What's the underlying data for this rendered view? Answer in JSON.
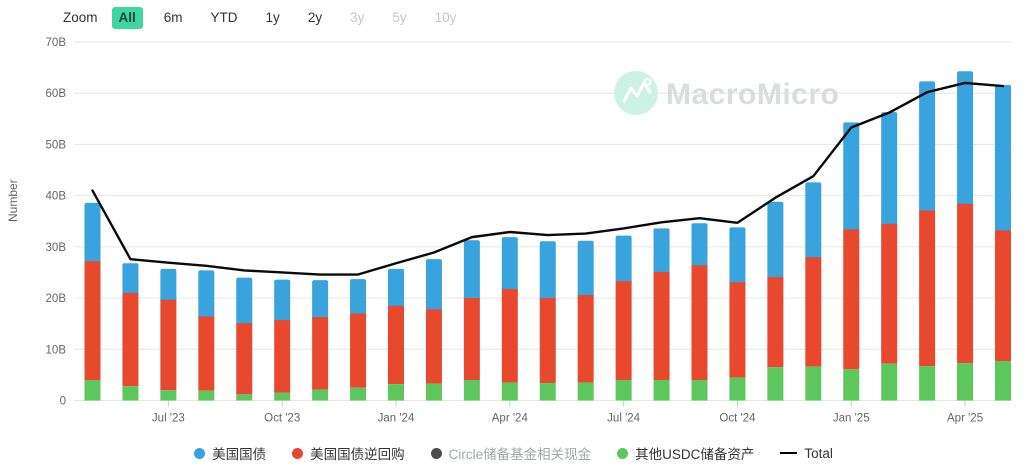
{
  "toolbar": {
    "zoom_label": "Zoom",
    "buttons": [
      {
        "label": "All",
        "state": "selected"
      },
      {
        "label": "6m",
        "state": "normal"
      },
      {
        "label": "YTD",
        "state": "normal"
      },
      {
        "label": "1y",
        "state": "normal"
      },
      {
        "label": "2y",
        "state": "normal"
      },
      {
        "label": "3y",
        "state": "disabled"
      },
      {
        "label": "5y",
        "state": "disabled"
      },
      {
        "label": "10y",
        "state": "disabled"
      }
    ]
  },
  "watermark": {
    "text": "MacroMicro",
    "icon": "macromicro-logo",
    "circle_color": "#cdf1e5",
    "text_color": "#dadde0"
  },
  "colors": {
    "treasury_blue": "#38a3dc",
    "repo_red": "#e8492e",
    "circle_cash_gray": "#4d4d4d",
    "other_green": "#5cc75c",
    "total_line": "#0a0a0a",
    "grid": "#e6e6e6",
    "axis_text": "#666666",
    "selected_range_bg": "#40d6a2"
  },
  "chart_data": {
    "type": "bar",
    "stacked": true,
    "title": "",
    "xlabel": "",
    "ylabel": "Number",
    "ylim": [
      0,
      70
    ],
    "grid": true,
    "legend_position": "bottom",
    "ytick_labels": [
      "0",
      "10B",
      "20B",
      "30B",
      "40B",
      "50B",
      "60B",
      "70B"
    ],
    "categories": [
      "May '23",
      "Jun '23",
      "Jul '23",
      "Aug '23",
      "Sep '23",
      "Oct '23",
      "Nov '23",
      "Dec '23",
      "Jan '24",
      "Feb '24",
      "Mar '24",
      "Apr '24",
      "May '24",
      "Jun '24",
      "Jul '24",
      "Aug '24",
      "Sep '24",
      "Oct '24",
      "Nov '24",
      "Dec '24",
      "Jan '25",
      "Feb '25",
      "Mar '25",
      "Apr '25",
      "May '25"
    ],
    "xtick_indices": [
      2,
      5,
      8,
      11,
      14,
      17,
      20,
      23
    ],
    "xtick_labels": [
      "Jul '23",
      "Oct '23",
      "Jan '24",
      "Apr '24",
      "Jul '24",
      "Oct '24",
      "Jan '25",
      "Apr '25"
    ],
    "series": [
      {
        "name": "其他USDC储备资产",
        "type": "bar",
        "color": "#5cc75c",
        "stack_order": 0,
        "values": [
          4.0,
          2.8,
          2.0,
          1.9,
          1.2,
          1.5,
          2.1,
          2.5,
          3.2,
          3.3,
          4.0,
          3.5,
          3.4,
          3.5,
          4.0,
          4.0,
          4.0,
          4.5,
          6.5,
          6.6,
          6.1,
          7.2,
          6.7,
          7.3,
          7.7
        ]
      },
      {
        "name": "美国国债逆回购",
        "type": "bar",
        "color": "#e8492e",
        "stack_order": 1,
        "values": [
          23.2,
          18.2,
          17.7,
          14.5,
          13.9,
          14.2,
          14.2,
          14.5,
          15.3,
          14.5,
          16.0,
          18.3,
          16.6,
          17.1,
          19.3,
          21.1,
          22.4,
          18.6,
          17.6,
          21.4,
          27.3,
          27.3,
          30.4,
          31.1,
          25.5
        ]
      },
      {
        "name": "美国国债",
        "type": "bar",
        "color": "#38a3dc",
        "stack_order": 2,
        "values": [
          11.4,
          5.8,
          6.0,
          9.0,
          8.9,
          7.9,
          7.2,
          6.7,
          7.2,
          9.8,
          11.3,
          10.1,
          11.1,
          10.6,
          8.9,
          8.5,
          8.2,
          10.7,
          14.7,
          14.6,
          20.9,
          21.8,
          25.2,
          25.9,
          28.4
        ]
      },
      {
        "name": "Circle储备基金相关现金",
        "type": "bar",
        "color": "#4d4d4d",
        "hidden": true,
        "values": []
      },
      {
        "name": "Total",
        "type": "line",
        "color": "#0a0a0a",
        "values": [
          41.0,
          27.6,
          26.9,
          26.3,
          25.4,
          25.0,
          24.6,
          24.6,
          26.8,
          28.9,
          31.9,
          32.9,
          32.3,
          32.6,
          33.6,
          34.8,
          35.6,
          34.7,
          39.6,
          43.8,
          53.3,
          56.2,
          60.2,
          62.0,
          61.4
        ]
      }
    ]
  },
  "legend": {
    "items": [
      {
        "label": "美国国债",
        "marker": "dot",
        "color": "#38a3dc",
        "disabled": false
      },
      {
        "label": "美国国债逆回购",
        "marker": "dot",
        "color": "#e8492e",
        "disabled": false
      },
      {
        "label": "Circle储备基金相关现金",
        "marker": "dot",
        "color": "#4d4d4d",
        "disabled": true
      },
      {
        "label": "其他USDC储备资产",
        "marker": "dot",
        "color": "#5cc75c",
        "disabled": false
      },
      {
        "label": "Total",
        "marker": "line",
        "color": "#000000",
        "disabled": false
      }
    ]
  }
}
